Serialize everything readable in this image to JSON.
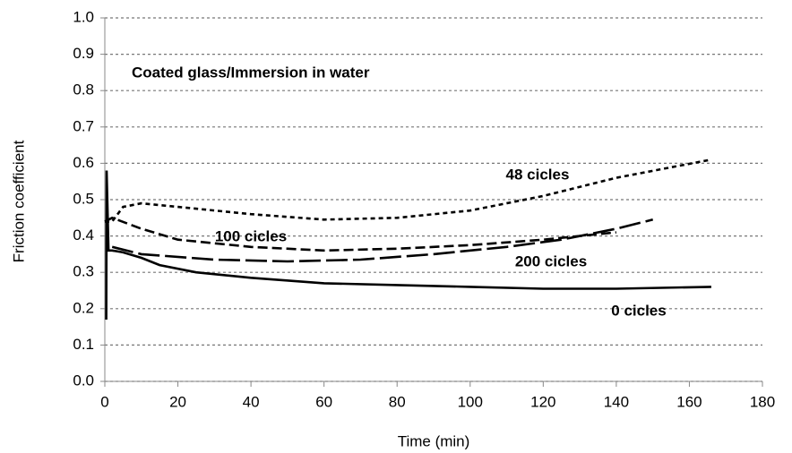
{
  "chart_data": {
    "type": "line",
    "annotation": "Coated glass/Immersion in water",
    "xlabel": "Time (min)",
    "ylabel": "Friction coefficient",
    "xlim": [
      0,
      180
    ],
    "xticks": [
      0,
      20,
      40,
      60,
      80,
      100,
      120,
      140,
      160,
      180
    ],
    "ylim": [
      0,
      1
    ],
    "yticks": [
      {
        "value": 0,
        "label": "0.0"
      },
      0.1,
      0.2,
      0.3,
      0.4,
      0.5,
      0.6,
      0.7,
      0.8,
      0.9,
      {
        "value": 1,
        "label": "1.0"
      }
    ],
    "grid": true,
    "series": [
      {
        "name": "0 cicles",
        "color": "#000000",
        "dash": "solid",
        "x": [
          0.4,
          0.5,
          1,
          2,
          5,
          10,
          15,
          25,
          40,
          60,
          80,
          100,
          120,
          140,
          166
        ],
        "values": [
          0.17,
          0.58,
          0.36,
          0.36,
          0.355,
          0.34,
          0.32,
          0.3,
          0.285,
          0.27,
          0.265,
          0.26,
          0.255,
          0.255,
          0.26
        ]
      },
      {
        "name": "48 cicles",
        "color": "#000000",
        "dash": "dotted",
        "x": [
          0,
          2,
          5,
          10,
          20,
          40,
          60,
          80,
          100,
          120,
          140,
          166
        ],
        "values": [
          0.44,
          0.44,
          0.48,
          0.49,
          0.48,
          0.46,
          0.445,
          0.45,
          0.47,
          0.51,
          0.56,
          0.61
        ]
      },
      {
        "name": "100 cicles",
        "color": "#000000",
        "dash": "dashed",
        "x": [
          0,
          2,
          10,
          20,
          40,
          60,
          80,
          100,
          120,
          140
        ],
        "values": [
          0.44,
          0.45,
          0.42,
          0.39,
          0.37,
          0.36,
          0.365,
          0.375,
          0.39,
          0.41
        ]
      },
      {
        "name": "200 cicles",
        "color": "#000000",
        "dash": "longdash",
        "x": [
          2,
          10,
          30,
          50,
          70,
          90,
          110,
          125,
          140,
          150
        ],
        "values": [
          0.37,
          0.35,
          0.335,
          0.33,
          0.335,
          0.35,
          0.37,
          0.39,
          0.42,
          0.445
        ]
      }
    ]
  }
}
